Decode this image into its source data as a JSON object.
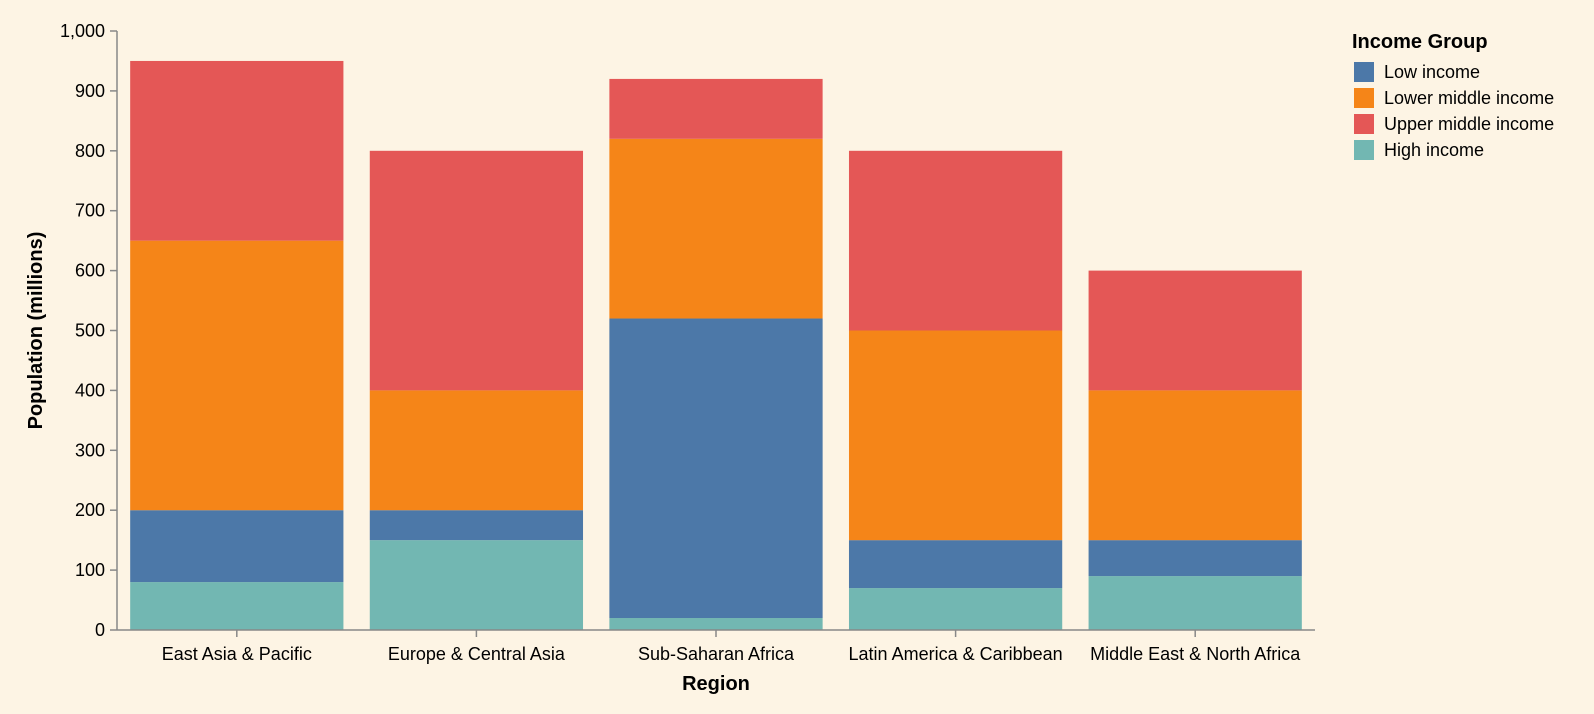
{
  "chart_data": {
    "type": "bar",
    "stacked": true,
    "categories": [
      "East Asia & Pacific",
      "Europe & Central Asia",
      "Sub-Saharan Africa",
      "Latin America & Caribbean",
      "Middle East & North Africa"
    ],
    "series": [
      {
        "name": "High income",
        "color": "#72b7b2",
        "values": [
          80,
          150,
          20,
          70,
          90
        ]
      },
      {
        "name": "Low income",
        "color": "#4c78a8",
        "values": [
          120,
          50,
          500,
          80,
          60
        ]
      },
      {
        "name": "Lower middle income",
        "color": "#f58518",
        "values": [
          450,
          200,
          300,
          350,
          250
        ]
      },
      {
        "name": "Upper middle income",
        "color": "#e45756",
        "values": [
          300,
          400,
          100,
          300,
          200
        ]
      }
    ],
    "xlabel": "Region",
    "ylabel": "Population (millions)",
    "ylim": [
      0,
      1000
    ],
    "yticks": [
      "0",
      "100",
      "200",
      "300",
      "400",
      "500",
      "600",
      "700",
      "800",
      "900",
      "1,000"
    ],
    "grid": false,
    "legend": {
      "title": "Income Group",
      "placement": "top-right",
      "order": [
        "Low income",
        "Lower middle income",
        "Upper middle income",
        "High income"
      ]
    }
  }
}
